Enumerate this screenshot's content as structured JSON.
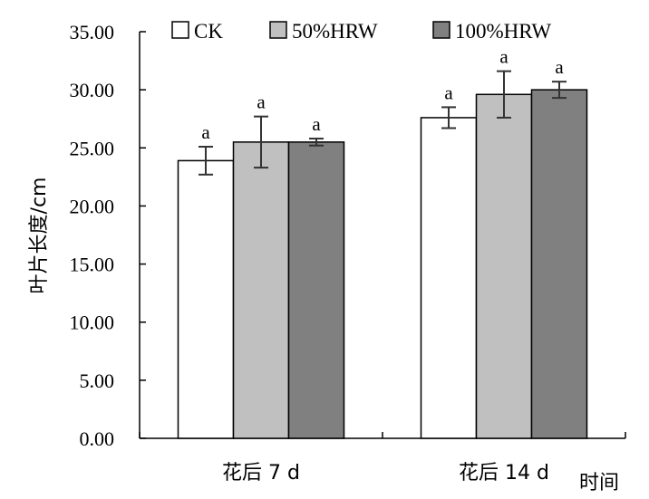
{
  "chart_data": {
    "type": "bar",
    "categories": [
      "花后 7 d",
      "花后 14 d"
    ],
    "xlabel": "时间",
    "ylabel": "叶片长度/cm",
    "ylim": [
      0,
      35
    ],
    "yticks": [
      "0.00",
      "5.00",
      "10.00",
      "15.00",
      "20.00",
      "25.00",
      "30.00",
      "35.00"
    ],
    "grid": false,
    "legend_position": "top",
    "series": [
      {
        "name": "CK",
        "color": "#ffffff",
        "values": [
          23.9,
          27.6
        ],
        "errors": [
          1.2,
          0.9
        ],
        "labels": [
          "a",
          "a"
        ]
      },
      {
        "name": "50%HRW",
        "color": "#c0c0c0",
        "values": [
          25.5,
          29.6
        ],
        "errors": [
          2.2,
          2.0
        ],
        "labels": [
          "a",
          "a"
        ]
      },
      {
        "name": "100%HRW",
        "color": "#808080",
        "values": [
          25.5,
          30.0
        ],
        "errors": [
          0.3,
          0.7
        ],
        "labels": [
          "a",
          "a"
        ]
      }
    ]
  }
}
